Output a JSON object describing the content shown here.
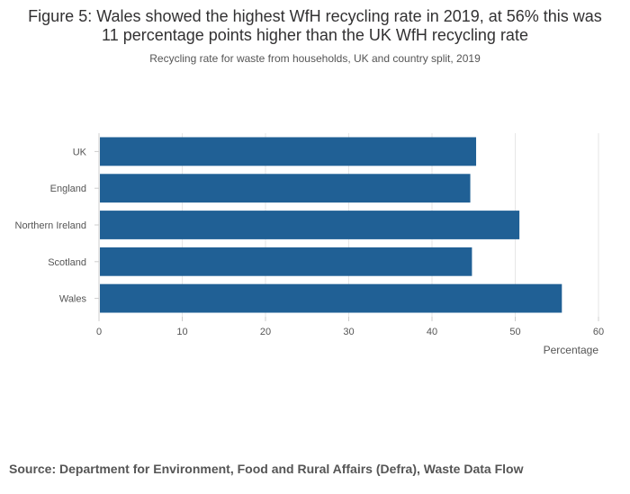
{
  "page": {
    "title": "Figure 5: Wales showed the highest WfH recycling rate in 2019, at 56% this was 11 percentage points higher than the UK WfH recycling rate",
    "subtitle": "Recycling rate for waste from households, UK and country split, 2019",
    "source": "Source: Department for Environment, Food and Rural Affairs (Defra),  Waste Data Flow"
  },
  "chart_data": {
    "type": "bar",
    "orientation": "horizontal",
    "categories": [
      "UK",
      "England",
      "Northern Ireland",
      "Scotland",
      "Wales"
    ],
    "values": [
      45.3,
      44.6,
      50.5,
      44.8,
      55.6
    ],
    "xlabel": "Percentage",
    "ylabel": "",
    "xlim": [
      0,
      60
    ],
    "xticks": [
      0,
      10,
      20,
      30,
      40,
      50,
      60
    ],
    "grid": true,
    "bar_color": "#206095",
    "grid_color": "#e6e6e6"
  }
}
